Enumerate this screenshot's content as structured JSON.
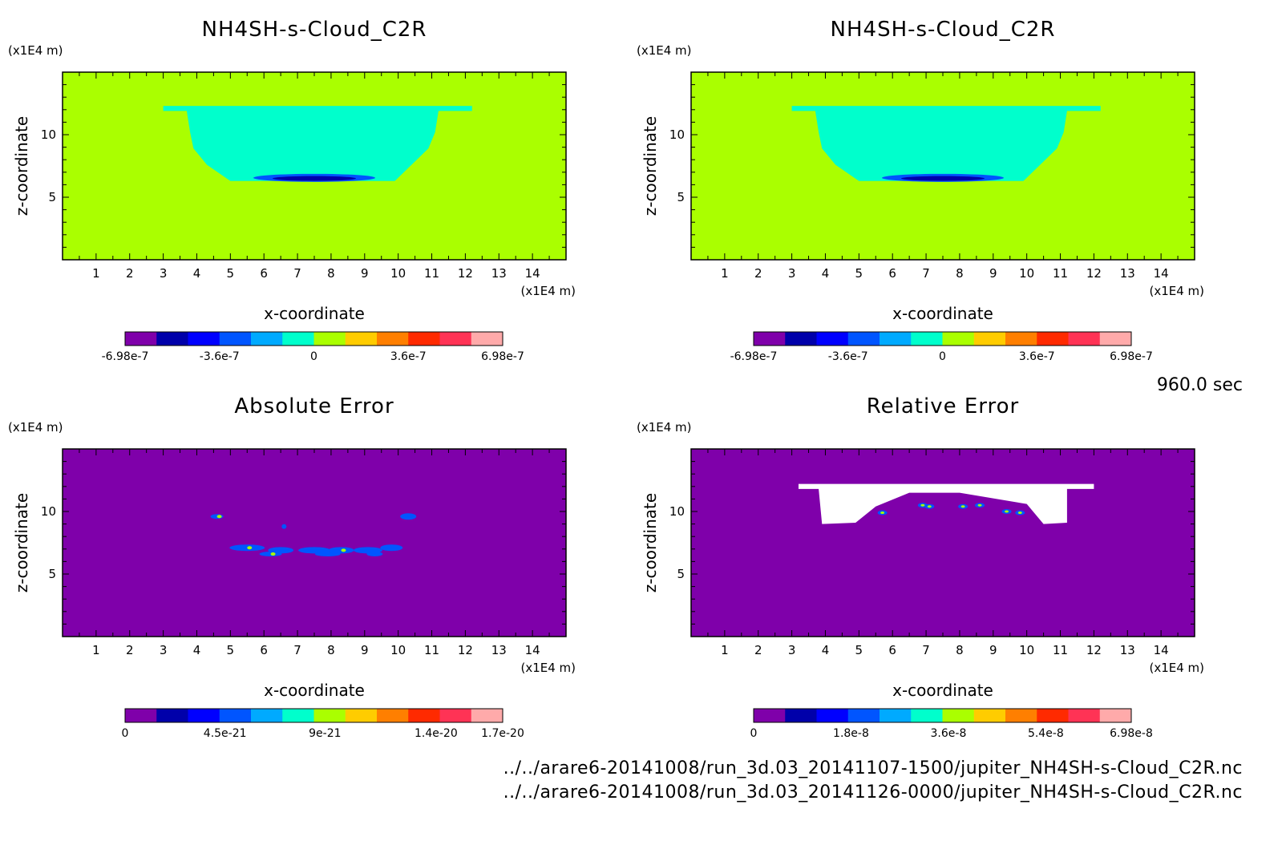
{
  "timestamp": "960.0 sec",
  "files": [
    "../../arare6-20141008/run_3d.03_20141107-1500/jupiter_NH4SH-s-Cloud_C2R.nc",
    "../../arare6-20141008/run_3d.03_20141126-0000/jupiter_NH4SH-s-Cloud_C2R.nc"
  ],
  "colors": {
    "background_field": "#aaff00",
    "cloud_core": "#00ffcc",
    "error_background": "#7f00aa",
    "white": "#ffffff"
  },
  "chart_data": [
    {
      "type": "heatmap",
      "title": "NH4SH-s-Cloud_C2R",
      "xlabel": "x-coordinate",
      "ylabel": "z-coordinate",
      "x_unit": "(x1E4 m)",
      "y_unit": "(x1E4 m)",
      "xlim": [
        0,
        15
      ],
      "ylim": [
        0,
        15
      ],
      "xticks": [
        "1",
        "2",
        "3",
        "4",
        "5",
        "6",
        "7",
        "8",
        "9",
        "10",
        "11",
        "12",
        "13",
        "14"
      ],
      "yticks": [
        "5",
        "10"
      ],
      "colorbar": {
        "colors": [
          "#7f00aa",
          "#0000aa",
          "#0000ff",
          "#0055ff",
          "#00aaff",
          "#00ffcc",
          "#aaff00",
          "#ffcc00",
          "#ff7f00",
          "#ff2a00",
          "#ff3355",
          "#ffaaaa"
        ],
        "tick_labels": [
          "-6.98e-7",
          "-3.6e-7",
          "0",
          "3.6e-7",
          "6.98e-7"
        ],
        "tick_positions": [
          0,
          0.25,
          0.5,
          0.75,
          1.0
        ]
      }
    },
    {
      "type": "heatmap",
      "title": "NH4SH-s-Cloud_C2R",
      "xlabel": "x-coordinate",
      "ylabel": "z-coordinate",
      "x_unit": "(x1E4 m)",
      "y_unit": "(x1E4 m)",
      "xlim": [
        0,
        15
      ],
      "ylim": [
        0,
        15
      ],
      "xticks": [
        "1",
        "2",
        "3",
        "4",
        "5",
        "6",
        "7",
        "8",
        "9",
        "10",
        "11",
        "12",
        "13",
        "14"
      ],
      "yticks": [
        "5",
        "10"
      ],
      "colorbar": {
        "colors": [
          "#7f00aa",
          "#0000aa",
          "#0000ff",
          "#0055ff",
          "#00aaff",
          "#00ffcc",
          "#aaff00",
          "#ffcc00",
          "#ff7f00",
          "#ff2a00",
          "#ff3355",
          "#ffaaaa"
        ],
        "tick_labels": [
          "-6.98e-7",
          "-3.6e-7",
          "0",
          "3.6e-7",
          "6.98e-7"
        ],
        "tick_positions": [
          0,
          0.25,
          0.5,
          0.75,
          1.0
        ]
      }
    },
    {
      "type": "heatmap",
      "title": "Absolute Error",
      "xlabel": "x-coordinate",
      "ylabel": "z-coordinate",
      "x_unit": "(x1E4 m)",
      "y_unit": "(x1E4 m)",
      "xlim": [
        0,
        15
      ],
      "ylim": [
        0,
        15
      ],
      "xticks": [
        "1",
        "2",
        "3",
        "4",
        "5",
        "6",
        "7",
        "8",
        "9",
        "10",
        "11",
        "12",
        "13",
        "14"
      ],
      "yticks": [
        "5",
        "10"
      ],
      "colorbar": {
        "colors": [
          "#7f00aa",
          "#0000aa",
          "#0000ff",
          "#0055ff",
          "#00aaff",
          "#00ffcc",
          "#aaff00",
          "#ffcc00",
          "#ff7f00",
          "#ff2a00",
          "#ff3355",
          "#ffaaaa"
        ],
        "tick_labels": [
          "0",
          "4.5e-21",
          "9e-21",
          "1.4e-20",
          "1.7e-20"
        ],
        "tick_positions": [
          0,
          0.2647,
          0.5294,
          0.8235,
          1.0
        ]
      }
    },
    {
      "type": "heatmap",
      "title": "Relative Error",
      "xlabel": "x-coordinate",
      "ylabel": "z-coordinate",
      "x_unit": "(x1E4 m)",
      "y_unit": "(x1E4 m)",
      "xlim": [
        0,
        15
      ],
      "ylim": [
        0,
        15
      ],
      "xticks": [
        "1",
        "2",
        "3",
        "4",
        "5",
        "6",
        "7",
        "8",
        "9",
        "10",
        "11",
        "12",
        "13",
        "14"
      ],
      "yticks": [
        "5",
        "10"
      ],
      "colorbar": {
        "colors": [
          "#7f00aa",
          "#0000aa",
          "#0000ff",
          "#0055ff",
          "#00aaff",
          "#00ffcc",
          "#aaff00",
          "#ffcc00",
          "#ff7f00",
          "#ff2a00",
          "#ff3355",
          "#ffaaaa"
        ],
        "tick_labels": [
          "0",
          "1.8e-8",
          "3.6e-8",
          "5.4e-8",
          "6.98e-8"
        ],
        "tick_positions": [
          0,
          0.2579,
          0.5158,
          0.7736,
          1.0
        ]
      }
    }
  ]
}
